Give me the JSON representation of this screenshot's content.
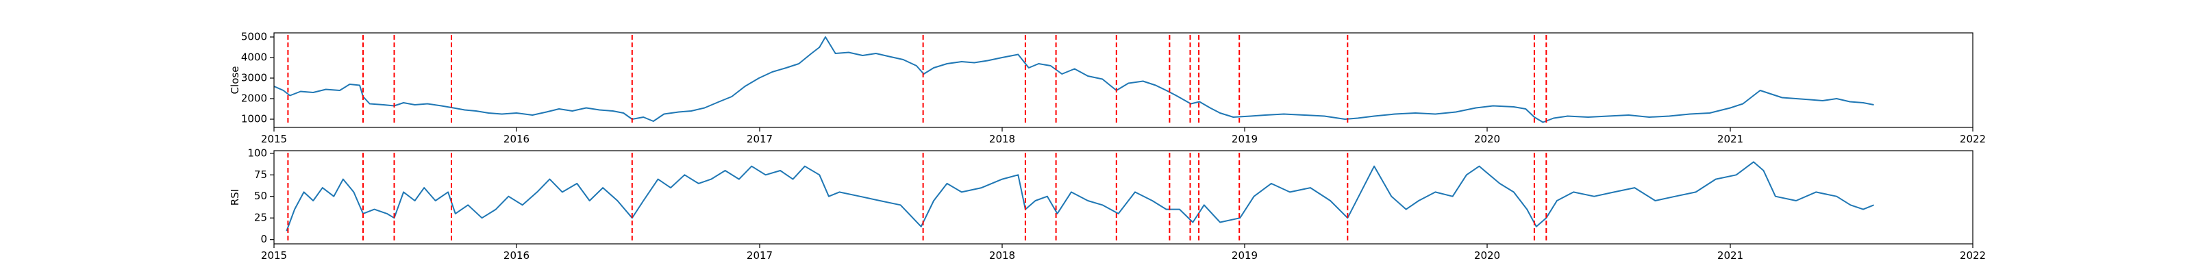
{
  "chart_data": [
    {
      "type": "line",
      "ylabel": "Close",
      "xlim": [
        "2015-01-01",
        "2022-01-01"
      ],
      "ylim": [
        600,
        5200
      ],
      "x_tick_labels": [
        "2015",
        "2016",
        "2017",
        "2018",
        "2019",
        "2020",
        "2021",
        "2022"
      ],
      "y_ticks": [
        1000,
        2000,
        3000,
        4000,
        5000
      ],
      "y_tick_labels": [
        "1000",
        "2000",
        "3000",
        "4000",
        "5000"
      ],
      "line_color": "#1f77b4",
      "marker_color": "#ff0000",
      "series": [
        {
          "points": [
            [
              "2015-01-01",
              2600
            ],
            [
              "2015-01-15",
              2400
            ],
            [
              "2015-01-25",
              2150
            ],
            [
              "2015-02-10",
              2350
            ],
            [
              "2015-03-01",
              2300
            ],
            [
              "2015-03-20",
              2450
            ],
            [
              "2015-04-10",
              2400
            ],
            [
              "2015-04-25",
              2700
            ],
            [
              "2015-05-10",
              2650
            ],
            [
              "2015-05-15",
              2100
            ],
            [
              "2015-05-25",
              1750
            ],
            [
              "2015-06-15",
              1700
            ],
            [
              "2015-07-01",
              1650
            ],
            [
              "2015-07-15",
              1800
            ],
            [
              "2015-08-01",
              1700
            ],
            [
              "2015-08-20",
              1750
            ],
            [
              "2015-09-10",
              1650
            ],
            [
              "2015-09-28",
              1550
            ],
            [
              "2015-10-15",
              1450
            ],
            [
              "2015-11-01",
              1400
            ],
            [
              "2015-11-20",
              1300
            ],
            [
              "2015-12-10",
              1250
            ],
            [
              "2016-01-01",
              1300
            ],
            [
              "2016-01-25",
              1200
            ],
            [
              "2016-02-15",
              1350
            ],
            [
              "2016-03-05",
              1500
            ],
            [
              "2016-03-25",
              1400
            ],
            [
              "2016-04-15",
              1550
            ],
            [
              "2016-05-05",
              1450
            ],
            [
              "2016-05-25",
              1400
            ],
            [
              "2016-06-10",
              1300
            ],
            [
              "2016-06-23",
              1000
            ],
            [
              "2016-07-10",
              1100
            ],
            [
              "2016-07-25",
              900
            ],
            [
              "2016-08-10",
              1250
            ],
            [
              "2016-09-01",
              1350
            ],
            [
              "2016-09-20",
              1400
            ],
            [
              "2016-10-10",
              1550
            ],
            [
              "2016-11-01",
              1850
            ],
            [
              "2016-11-20",
              2100
            ],
            [
              "2016-12-10",
              2600
            ],
            [
              "2016-12-31",
              3000
            ],
            [
              "2017-01-20",
              3300
            ],
            [
              "2017-02-10",
              3500
            ],
            [
              "2017-03-01",
              3700
            ],
            [
              "2017-03-20",
              4200
            ],
            [
              "2017-04-01",
              4500
            ],
            [
              "2017-04-10",
              5000
            ],
            [
              "2017-04-25",
              4200
            ],
            [
              "2017-05-15",
              4250
            ],
            [
              "2017-06-05",
              4100
            ],
            [
              "2017-06-25",
              4200
            ],
            [
              "2017-07-15",
              4050
            ],
            [
              "2017-08-05",
              3900
            ],
            [
              "2017-08-25",
              3600
            ],
            [
              "2017-09-05",
              3200
            ],
            [
              "2017-09-20",
              3500
            ],
            [
              "2017-10-10",
              3700
            ],
            [
              "2017-11-01",
              3800
            ],
            [
              "2017-11-20",
              3750
            ],
            [
              "2017-12-10",
              3850
            ],
            [
              "2018-01-01",
              4000
            ],
            [
              "2018-01-25",
              4150
            ],
            [
              "2018-02-10",
              3500
            ],
            [
              "2018-02-25",
              3700
            ],
            [
              "2018-03-15",
              3600
            ],
            [
              "2018-04-01",
              3200
            ],
            [
              "2018-04-20",
              3450
            ],
            [
              "2018-05-10",
              3100
            ],
            [
              "2018-06-01",
              2950
            ],
            [
              "2018-06-22",
              2400
            ],
            [
              "2018-07-10",
              2750
            ],
            [
              "2018-08-01",
              2850
            ],
            [
              "2018-08-20",
              2650
            ],
            [
              "2018-09-05",
              2400
            ],
            [
              "2018-09-20",
              2150
            ],
            [
              "2018-10-12",
              1750
            ],
            [
              "2018-10-25",
              1850
            ],
            [
              "2018-11-10",
              1550
            ],
            [
              "2018-11-25",
              1300
            ],
            [
              "2018-12-15",
              1100
            ],
            [
              "2019-01-10",
              1150
            ],
            [
              "2019-02-01",
              1200
            ],
            [
              "2019-03-01",
              1250
            ],
            [
              "2019-04-01",
              1200
            ],
            [
              "2019-05-01",
              1150
            ],
            [
              "2019-06-01",
              1000
            ],
            [
              "2019-06-20",
              1050
            ],
            [
              "2019-07-15",
              1150
            ],
            [
              "2019-08-15",
              1250
            ],
            [
              "2019-09-15",
              1300
            ],
            [
              "2019-10-15",
              1250
            ],
            [
              "2019-11-15",
              1350
            ],
            [
              "2019-12-15",
              1550
            ],
            [
              "2020-01-10",
              1650
            ],
            [
              "2020-02-10",
              1600
            ],
            [
              "2020-02-28",
              1500
            ],
            [
              "2020-03-12",
              1100
            ],
            [
              "2020-03-25",
              850
            ],
            [
              "2020-04-10",
              1050
            ],
            [
              "2020-05-01",
              1150
            ],
            [
              "2020-06-01",
              1100
            ],
            [
              "2020-07-01",
              1150
            ],
            [
              "2020-08-01",
              1200
            ],
            [
              "2020-09-01",
              1100
            ],
            [
              "2020-10-01",
              1150
            ],
            [
              "2020-11-01",
              1250
            ],
            [
              "2020-12-01",
              1300
            ],
            [
              "2021-01-01",
              1550
            ],
            [
              "2021-01-20",
              1750
            ],
            [
              "2021-02-05",
              2150
            ],
            [
              "2021-02-15",
              2400
            ],
            [
              "2021-03-01",
              2250
            ],
            [
              "2021-03-20",
              2050
            ],
            [
              "2021-04-10",
              2000
            ],
            [
              "2021-05-01",
              1950
            ],
            [
              "2021-05-20",
              1900
            ],
            [
              "2021-06-10",
              2000
            ],
            [
              "2021-06-30",
              1850
            ],
            [
              "2021-07-20",
              1800
            ],
            [
              "2021-08-05",
              1700
            ]
          ]
        }
      ],
      "vlines": [
        "2015-01-22",
        "2015-05-15",
        "2015-07-01",
        "2015-09-25",
        "2016-06-23",
        "2017-09-04",
        "2018-02-05",
        "2018-03-23",
        "2018-06-22",
        "2018-09-10",
        "2018-10-11",
        "2018-10-24",
        "2018-12-24",
        "2019-06-05",
        "2020-03-12",
        "2020-03-30"
      ]
    },
    {
      "type": "line",
      "ylabel": "RSI",
      "xlim": [
        "2015-01-01",
        "2022-01-01"
      ],
      "ylim": [
        -5,
        103
      ],
      "x_tick_labels": [
        "2015",
        "2016",
        "2017",
        "2018",
        "2019",
        "2020",
        "2021",
        "2022"
      ],
      "y_ticks": [
        0,
        25,
        50,
        75,
        100
      ],
      "y_tick_labels": [
        "0",
        "25",
        "50",
        "75",
        "100"
      ],
      "line_color": "#1f77b4",
      "marker_color": "#ff0000",
      "series": [
        {
          "points": [
            [
              "2015-01-20",
              10
            ],
            [
              "2015-02-01",
              35
            ],
            [
              "2015-02-15",
              55
            ],
            [
              "2015-03-01",
              45
            ],
            [
              "2015-03-15",
              60
            ],
            [
              "2015-04-01",
              50
            ],
            [
              "2015-04-15",
              70
            ],
            [
              "2015-05-01",
              55
            ],
            [
              "2015-05-15",
              30
            ],
            [
              "2015-06-01",
              35
            ],
            [
              "2015-06-20",
              30
            ],
            [
              "2015-07-01",
              25
            ],
            [
              "2015-07-15",
              55
            ],
            [
              "2015-08-01",
              45
            ],
            [
              "2015-08-15",
              60
            ],
            [
              "2015-09-01",
              45
            ],
            [
              "2015-09-20",
              55
            ],
            [
              "2015-10-01",
              30
            ],
            [
              "2015-10-20",
              40
            ],
            [
              "2015-11-10",
              25
            ],
            [
              "2015-12-01",
              35
            ],
            [
              "2015-12-20",
              50
            ],
            [
              "2016-01-10",
              40
            ],
            [
              "2016-02-01",
              55
            ],
            [
              "2016-02-20",
              70
            ],
            [
              "2016-03-10",
              55
            ],
            [
              "2016-04-01",
              65
            ],
            [
              "2016-04-20",
              45
            ],
            [
              "2016-05-10",
              60
            ],
            [
              "2016-06-01",
              45
            ],
            [
              "2016-06-23",
              25
            ],
            [
              "2016-07-10",
              45
            ],
            [
              "2016-08-01",
              70
            ],
            [
              "2016-08-20",
              60
            ],
            [
              "2016-09-10",
              75
            ],
            [
              "2016-10-01",
              65
            ],
            [
              "2016-10-20",
              70
            ],
            [
              "2016-11-10",
              80
            ],
            [
              "2016-12-01",
              70
            ],
            [
              "2016-12-20",
              85
            ],
            [
              "2017-01-10",
              75
            ],
            [
              "2017-02-01",
              80
            ],
            [
              "2017-02-20",
              70
            ],
            [
              "2017-03-10",
              85
            ],
            [
              "2017-04-01",
              75
            ],
            [
              "2017-04-15",
              50
            ],
            [
              "2017-05-01",
              55
            ],
            [
              "2017-06-01",
              50
            ],
            [
              "2017-07-01",
              45
            ],
            [
              "2017-08-01",
              40
            ],
            [
              "2017-09-01",
              15
            ],
            [
              "2017-09-20",
              45
            ],
            [
              "2017-10-10",
              65
            ],
            [
              "2017-11-01",
              55
            ],
            [
              "2017-12-01",
              60
            ],
            [
              "2018-01-01",
              70
            ],
            [
              "2018-01-25",
              75
            ],
            [
              "2018-02-05",
              35
            ],
            [
              "2018-02-20",
              45
            ],
            [
              "2018-03-10",
              50
            ],
            [
              "2018-03-25",
              30
            ],
            [
              "2018-04-15",
              55
            ],
            [
              "2018-05-10",
              45
            ],
            [
              "2018-06-01",
              40
            ],
            [
              "2018-06-25",
              30
            ],
            [
              "2018-07-20",
              55
            ],
            [
              "2018-08-15",
              45
            ],
            [
              "2018-09-05",
              35
            ],
            [
              "2018-09-25",
              35
            ],
            [
              "2018-10-15",
              20
            ],
            [
              "2018-11-01",
              40
            ],
            [
              "2018-11-25",
              20
            ],
            [
              "2018-12-25",
              25
            ],
            [
              "2019-01-15",
              50
            ],
            [
              "2019-02-10",
              65
            ],
            [
              "2019-03-10",
              55
            ],
            [
              "2019-04-10",
              60
            ],
            [
              "2019-05-10",
              45
            ],
            [
              "2019-06-05",
              25
            ],
            [
              "2019-06-25",
              55
            ],
            [
              "2019-07-15",
              85
            ],
            [
              "2019-08-10",
              50
            ],
            [
              "2019-09-01",
              35
            ],
            [
              "2019-09-20",
              45
            ],
            [
              "2019-10-15",
              55
            ],
            [
              "2019-11-10",
              50
            ],
            [
              "2019-12-01",
              75
            ],
            [
              "2019-12-20",
              85
            ],
            [
              "2020-01-20",
              65
            ],
            [
              "2020-02-10",
              55
            ],
            [
              "2020-03-01",
              35
            ],
            [
              "2020-03-15",
              15
            ],
            [
              "2020-03-30",
              25
            ],
            [
              "2020-04-15",
              45
            ],
            [
              "2020-05-10",
              55
            ],
            [
              "2020-06-10",
              50
            ],
            [
              "2020-07-10",
              55
            ],
            [
              "2020-08-10",
              60
            ],
            [
              "2020-09-10",
              45
            ],
            [
              "2020-10-10",
              50
            ],
            [
              "2020-11-10",
              55
            ],
            [
              "2020-12-10",
              70
            ],
            [
              "2021-01-10",
              75
            ],
            [
              "2021-02-05",
              90
            ],
            [
              "2021-02-20",
              80
            ],
            [
              "2021-03-10",
              50
            ],
            [
              "2021-04-10",
              45
            ],
            [
              "2021-05-10",
              55
            ],
            [
              "2021-06-10",
              50
            ],
            [
              "2021-07-01",
              40
            ],
            [
              "2021-07-20",
              35
            ],
            [
              "2021-08-05",
              40
            ]
          ]
        }
      ],
      "vlines": [
        "2015-01-22",
        "2015-05-15",
        "2015-07-01",
        "2015-09-25",
        "2016-06-23",
        "2017-09-04",
        "2018-02-05",
        "2018-03-23",
        "2018-06-22",
        "2018-09-10",
        "2018-10-11",
        "2018-10-24",
        "2018-12-24",
        "2019-06-05",
        "2020-03-12",
        "2020-03-30"
      ]
    }
  ]
}
